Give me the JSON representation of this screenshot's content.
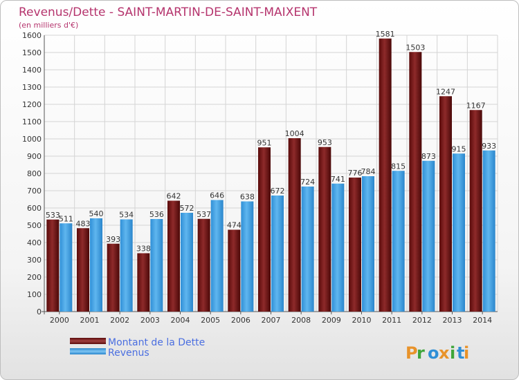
{
  "chart_data": {
    "type": "bar",
    "title": "Revenus/Dette - SAINT-MARTIN-DE-SAINT-MAIXENT",
    "subtitle": "(en milliers d'€)",
    "categories": [
      "2000",
      "2001",
      "2002",
      "2003",
      "2004",
      "2005",
      "2006",
      "2007",
      "2008",
      "2009",
      "2010",
      "2011",
      "2012",
      "2013",
      "2014"
    ],
    "series": [
      {
        "name": "Montant de la Dette",
        "color": "#7a1414",
        "values": [
          533,
          483,
          393,
          338,
          642,
          537,
          474,
          951,
          1004,
          953,
          776,
          1581,
          1503,
          1247,
          1167
        ]
      },
      {
        "name": "Revenus",
        "color": "#3d9fe2",
        "values": [
          511,
          540,
          534,
          536,
          572,
          646,
          638,
          672,
          724,
          741,
          784,
          815,
          873,
          915,
          933
        ]
      }
    ],
    "ylim": [
      0,
      1600
    ],
    "yticks": [
      0,
      100,
      200,
      300,
      400,
      500,
      600,
      700,
      800,
      900,
      1000,
      1100,
      1200,
      1300,
      1400,
      1500,
      1600
    ],
    "grid": true,
    "legend": "bottom-left"
  },
  "brand": {
    "logo_text": "Proxiti"
  }
}
